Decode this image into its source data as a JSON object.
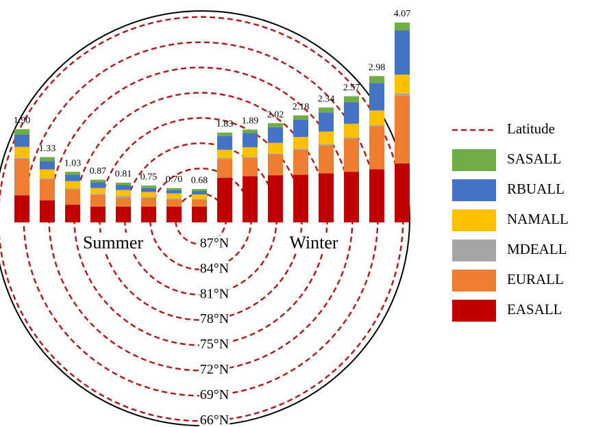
{
  "chart_data": {
    "type": "stacked_bar",
    "categories": [
      null,
      null,
      null,
      null,
      null,
      null,
      null,
      null,
      null,
      null,
      null,
      null,
      null,
      null,
      null,
      null
    ],
    "series": [
      {
        "name": "EASALL",
        "color": "#c00000",
        "values": [
          0.55,
          0.45,
          0.36,
          0.32,
          0.32,
          0.32,
          0.32,
          0.32,
          0.91,
          0.94,
          0.96,
          0.97,
          1.0,
          1.03,
          1.08,
          1.2
        ]
      },
      {
        "name": "EURALL",
        "color": "#ed7d31",
        "values": [
          0.75,
          0.43,
          0.31,
          0.24,
          0.18,
          0.18,
          0.15,
          0.14,
          0.38,
          0.37,
          0.42,
          0.51,
          0.57,
          0.68,
          0.88,
          1.38
        ]
      },
      {
        "name": "MDEALL",
        "color": "#a5a5a5",
        "values": [
          0.02,
          0.02,
          0.02,
          0.02,
          0.04,
          0.02,
          0.02,
          0.02,
          0.02,
          0.02,
          0.02,
          0.02,
          0.02,
          0.02,
          0.02,
          0.05
        ]
      },
      {
        "name": "NAMALL",
        "color": "#ffc000",
        "values": [
          0.22,
          0.18,
          0.15,
          0.12,
          0.12,
          0.1,
          0.1,
          0.09,
          0.17,
          0.2,
          0.22,
          0.24,
          0.26,
          0.28,
          0.3,
          0.38
        ]
      },
      {
        "name": "RBUALL",
        "color": "#4472c4",
        "values": [
          0.25,
          0.17,
          0.13,
          0.12,
          0.1,
          0.08,
          0.07,
          0.07,
          0.28,
          0.29,
          0.32,
          0.35,
          0.39,
          0.44,
          0.56,
          0.9
        ]
      },
      {
        "name": "SASALL",
        "color": "#70ad47",
        "values": [
          0.11,
          0.08,
          0.06,
          0.05,
          0.05,
          0.05,
          0.04,
          0.04,
          0.07,
          0.07,
          0.08,
          0.09,
          0.1,
          0.12,
          0.14,
          0.16
        ]
      }
    ],
    "totals": [
      1.9,
      1.33,
      1.03,
      0.87,
      0.81,
      0.75,
      0.7,
      0.68,
      1.83,
      1.89,
      2.02,
      2.18,
      2.34,
      2.57,
      2.98,
      4.07
    ],
    "total_labels": [
      "1.90",
      "1.33",
      "1.03",
      "0.87",
      "0.81",
      "0.75",
      "0.70",
      "0.68",
      "1.83",
      "1.89",
      "2.02",
      "2.18",
      "2.34",
      "2.57",
      "2.98",
      "4.07"
    ],
    "annotations": [
      "Summer",
      "Winter"
    ],
    "latitude_legend": {
      "name": "Latitude",
      "color": "#b01c1c"
    },
    "latitudes": [
      87,
      84,
      81,
      78,
      75,
      72,
      69,
      66
    ],
    "latitude_labels": [
      "87°N",
      "84°N",
      "81°N",
      "78°N",
      "75°N",
      "72°N",
      "69°N",
      "66°N"
    ]
  }
}
